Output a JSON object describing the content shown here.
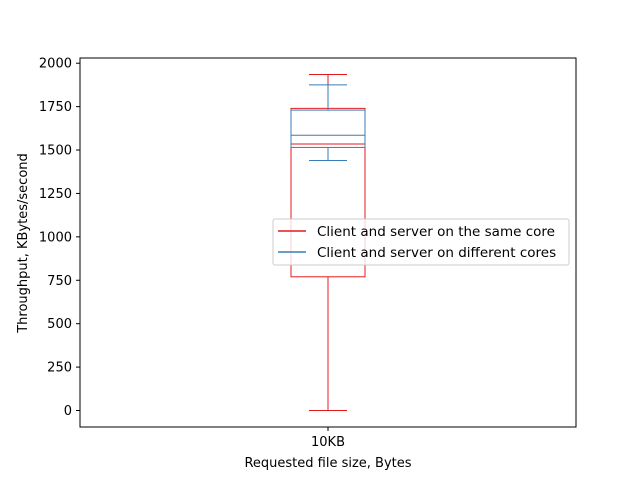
{
  "chart_data": {
    "type": "box",
    "xlabel": "Requested file size, Bytes",
    "ylabel": "Throughput, KBytes/second",
    "categories": [
      "10KB"
    ],
    "ylim": [
      -95,
      2030
    ],
    "yticks": [
      0,
      250,
      500,
      750,
      1000,
      1250,
      1500,
      1750,
      2000
    ],
    "grid": false,
    "legend_placement": "center-right",
    "series": [
      {
        "name": "Client and server on the same core",
        "color": "#e41a1c",
        "whisker_low": 0,
        "q1": 770,
        "median": 1535,
        "q3": 1740,
        "whisker_high": 1935
      },
      {
        "name": "Client and server on different cores",
        "color": "#377eb8",
        "whisker_low": 1440,
        "q1": 1515,
        "median": 1585,
        "q3": 1730,
        "whisker_high": 1875
      }
    ]
  }
}
